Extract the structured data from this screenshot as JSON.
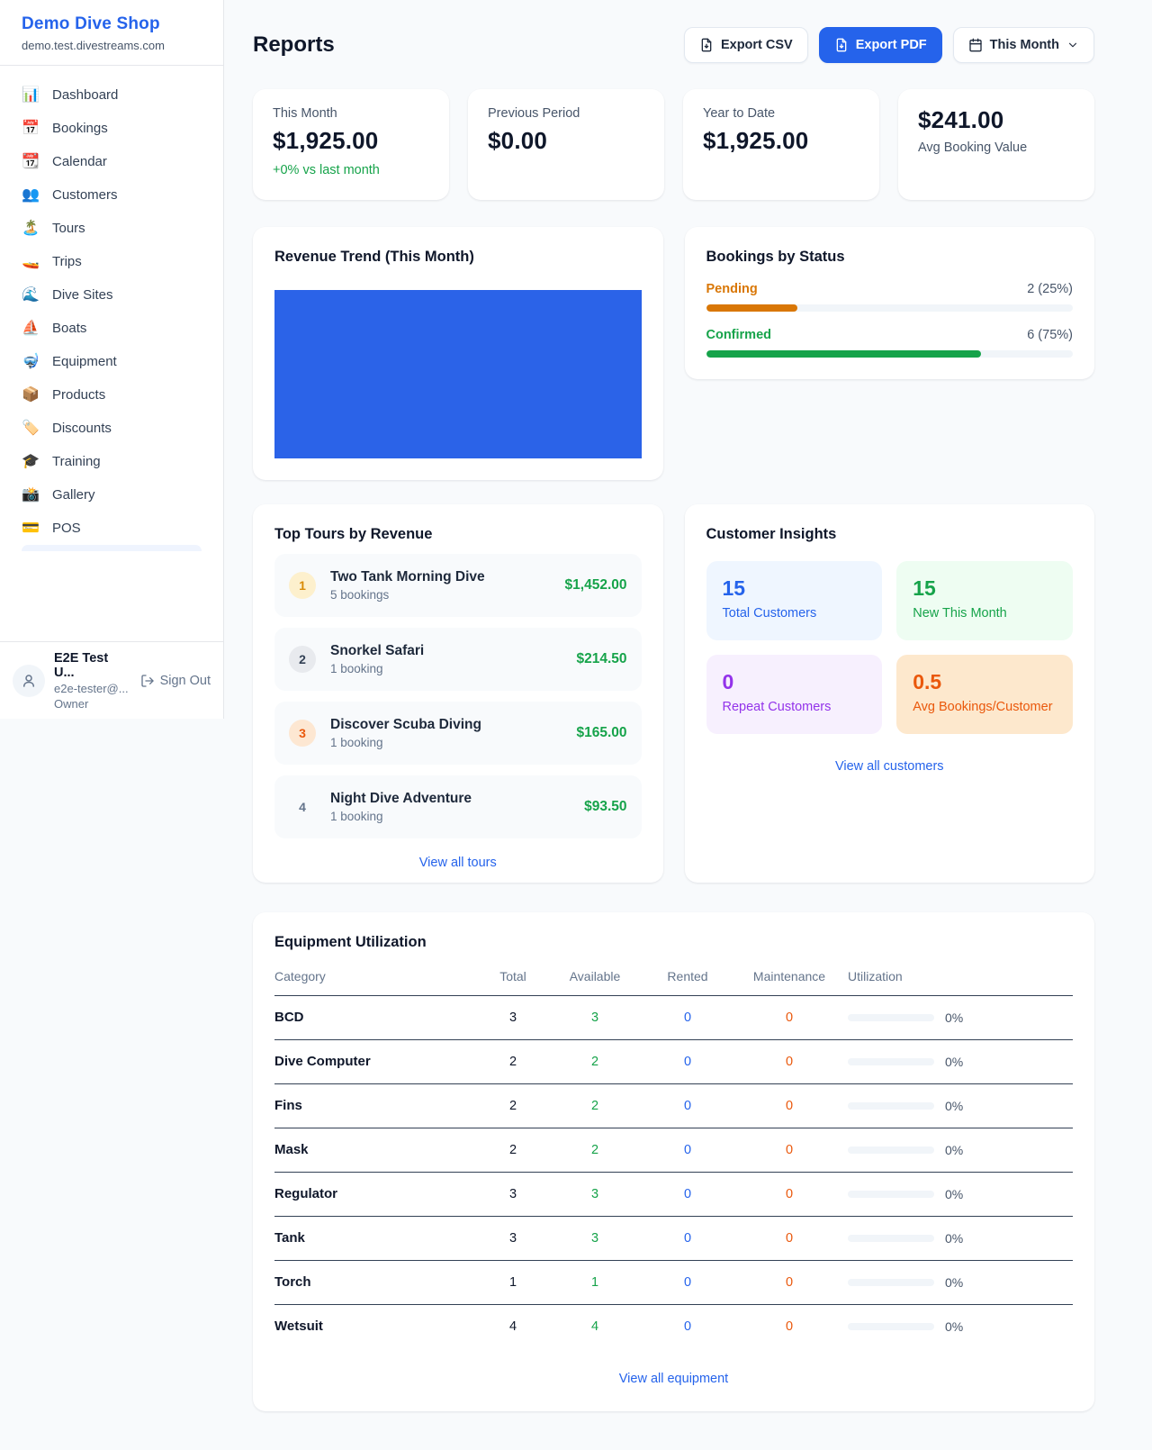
{
  "colors": {
    "accent_blue": "#2563eb",
    "chart_bar_blue": "#2b63e8",
    "green": "#16a34a",
    "pending_orange": "#d97706",
    "maintenance_orange": "#ea580c",
    "purple": "#9333ea",
    "page_bg": "#f8fafc"
  },
  "sidebar": {
    "brand": "Demo Dive Shop",
    "domain": "demo.test.divestreams.com",
    "nav": [
      {
        "icon": "📊",
        "label": "Dashboard"
      },
      {
        "icon": "📅",
        "label": "Bookings"
      },
      {
        "icon": "📆",
        "label": "Calendar"
      },
      {
        "icon": "👥",
        "label": "Customers"
      },
      {
        "icon": "🏝️",
        "label": "Tours"
      },
      {
        "icon": "🚤",
        "label": "Trips"
      },
      {
        "icon": "🌊",
        "label": "Dive Sites"
      },
      {
        "icon": "⛵",
        "label": "Boats"
      },
      {
        "icon": "🤿",
        "label": "Equipment"
      },
      {
        "icon": "📦",
        "label": "Products"
      },
      {
        "icon": "🏷️",
        "label": "Discounts"
      },
      {
        "icon": "🎓",
        "label": "Training"
      },
      {
        "icon": "📸",
        "label": "Gallery"
      },
      {
        "icon": "💳",
        "label": "POS"
      }
    ],
    "user": {
      "name": "E2E Test U...",
      "email": "e2e-tester@...",
      "role": "Owner",
      "sign_out": "Sign Out"
    }
  },
  "header": {
    "title": "Reports",
    "export_csv": "Export CSV",
    "export_pdf": "Export PDF",
    "period": "This Month"
  },
  "stats": [
    {
      "label": "This Month",
      "value": "$1,925.00",
      "delta": "+0% vs last month"
    },
    {
      "label": "Previous Period",
      "value": "$0.00"
    },
    {
      "label": "Year to Date",
      "value": "$1,925.00"
    },
    {
      "label": "Avg Booking Value",
      "value": "$241.00"
    }
  ],
  "chart_data": {
    "type": "bar",
    "title": "Revenue Trend (This Month)",
    "categories": [
      "This Month"
    ],
    "values": [
      1925
    ],
    "bar_color": "#2b63e8",
    "note": "single solid bar filling entire plot area, no axes or labels shown"
  },
  "revenue_trend": {
    "title": "Revenue Trend (This Month)"
  },
  "bookings_by_status": {
    "title": "Bookings by Status",
    "rows": [
      {
        "label": "Pending",
        "count": "2 (25%)",
        "pct": 25
      },
      {
        "label": "Confirmed",
        "count": "6 (75%)",
        "pct": 75
      }
    ]
  },
  "top_tours": {
    "title": "Top Tours by Revenue",
    "rows": [
      {
        "rank": "1",
        "name": "Two Tank Morning Dive",
        "bookings": "5 bookings",
        "amount": "$1,452.00"
      },
      {
        "rank": "2",
        "name": "Snorkel Safari",
        "bookings": "1 booking",
        "amount": "$214.50"
      },
      {
        "rank": "3",
        "name": "Discover Scuba Diving",
        "bookings": "1 booking",
        "amount": "$165.00"
      },
      {
        "rank": "4",
        "name": "Night Dive Adventure",
        "bookings": "1 booking",
        "amount": "$93.50"
      }
    ],
    "link": "View all tours"
  },
  "customer_insights": {
    "title": "Customer Insights",
    "tiles": [
      {
        "value": "15",
        "label": "Total Customers"
      },
      {
        "value": "15",
        "label": "New This Month"
      },
      {
        "value": "0",
        "label": "Repeat Customers"
      },
      {
        "value": "0.5",
        "label": "Avg Bookings/Customer"
      }
    ],
    "link": "View all customers"
  },
  "equipment": {
    "title": "Equipment Utilization",
    "columns": [
      "Category",
      "Total",
      "Available",
      "Rented",
      "Maintenance",
      "Utilization"
    ],
    "rows": [
      {
        "category": "BCD",
        "total": "3",
        "available": "3",
        "rented": "0",
        "maintenance": "0",
        "utilization": "0%",
        "util_pct": 0
      },
      {
        "category": "Dive Computer",
        "total": "2",
        "available": "2",
        "rented": "0",
        "maintenance": "0",
        "utilization": "0%",
        "util_pct": 0
      },
      {
        "category": "Fins",
        "total": "2",
        "available": "2",
        "rented": "0",
        "maintenance": "0",
        "utilization": "0%",
        "util_pct": 0
      },
      {
        "category": "Mask",
        "total": "2",
        "available": "2",
        "rented": "0",
        "maintenance": "0",
        "utilization": "0%",
        "util_pct": 0
      },
      {
        "category": "Regulator",
        "total": "3",
        "available": "3",
        "rented": "0",
        "maintenance": "0",
        "utilization": "0%",
        "util_pct": 0
      },
      {
        "category": "Tank",
        "total": "3",
        "available": "3",
        "rented": "0",
        "maintenance": "0",
        "utilization": "0%",
        "util_pct": 0
      },
      {
        "category": "Torch",
        "total": "1",
        "available": "1",
        "rented": "0",
        "maintenance": "0",
        "utilization": "0%",
        "util_pct": 0
      },
      {
        "category": "Wetsuit",
        "total": "4",
        "available": "4",
        "rented": "0",
        "maintenance": "0",
        "utilization": "0%",
        "util_pct": 0
      }
    ],
    "link": "View all equipment"
  }
}
